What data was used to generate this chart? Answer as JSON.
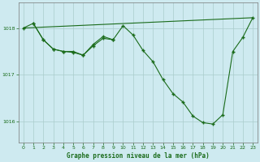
{
  "title": "Graphe pression niveau de la mer (hPa)",
  "bg_color": "#ceeaf0",
  "grid_color": "#aacccc",
  "line_color": "#1a6b1a",
  "xlim": [
    -0.5,
    23.5
  ],
  "ylim": [
    1015.55,
    1018.55
  ],
  "yticks": [
    1016,
    1017,
    1018
  ],
  "xticks": [
    0,
    1,
    2,
    3,
    4,
    5,
    6,
    7,
    8,
    9,
    10,
    11,
    12,
    13,
    14,
    15,
    16,
    17,
    18,
    19,
    20,
    21,
    22,
    23
  ],
  "line1_x": [
    0,
    1,
    2,
    3,
    4,
    5,
    6,
    7,
    8,
    9,
    10,
    11,
    12,
    13,
    14,
    15,
    16,
    17,
    18,
    19,
    20,
    21,
    22,
    23
  ],
  "line1_y": [
    1018.0,
    1018.1,
    1017.75,
    1017.55,
    1017.5,
    1017.48,
    1017.42,
    1017.62,
    1017.78,
    1017.75,
    1018.05,
    1017.85,
    1017.52,
    1017.28,
    1016.9,
    1016.6,
    1016.42,
    1016.12,
    1015.98,
    1015.95,
    1016.15,
    1017.5,
    1017.8,
    1018.22
  ],
  "line2_x": [
    0,
    23
  ],
  "line2_y": [
    1018.0,
    1018.22
  ],
  "line3_x": [
    1,
    2,
    3,
    4,
    5,
    6,
    7,
    8,
    9
  ],
  "line3_y": [
    1018.1,
    1017.75,
    1017.55,
    1017.5,
    1017.5,
    1017.42,
    1017.65,
    1017.82,
    1017.75
  ]
}
